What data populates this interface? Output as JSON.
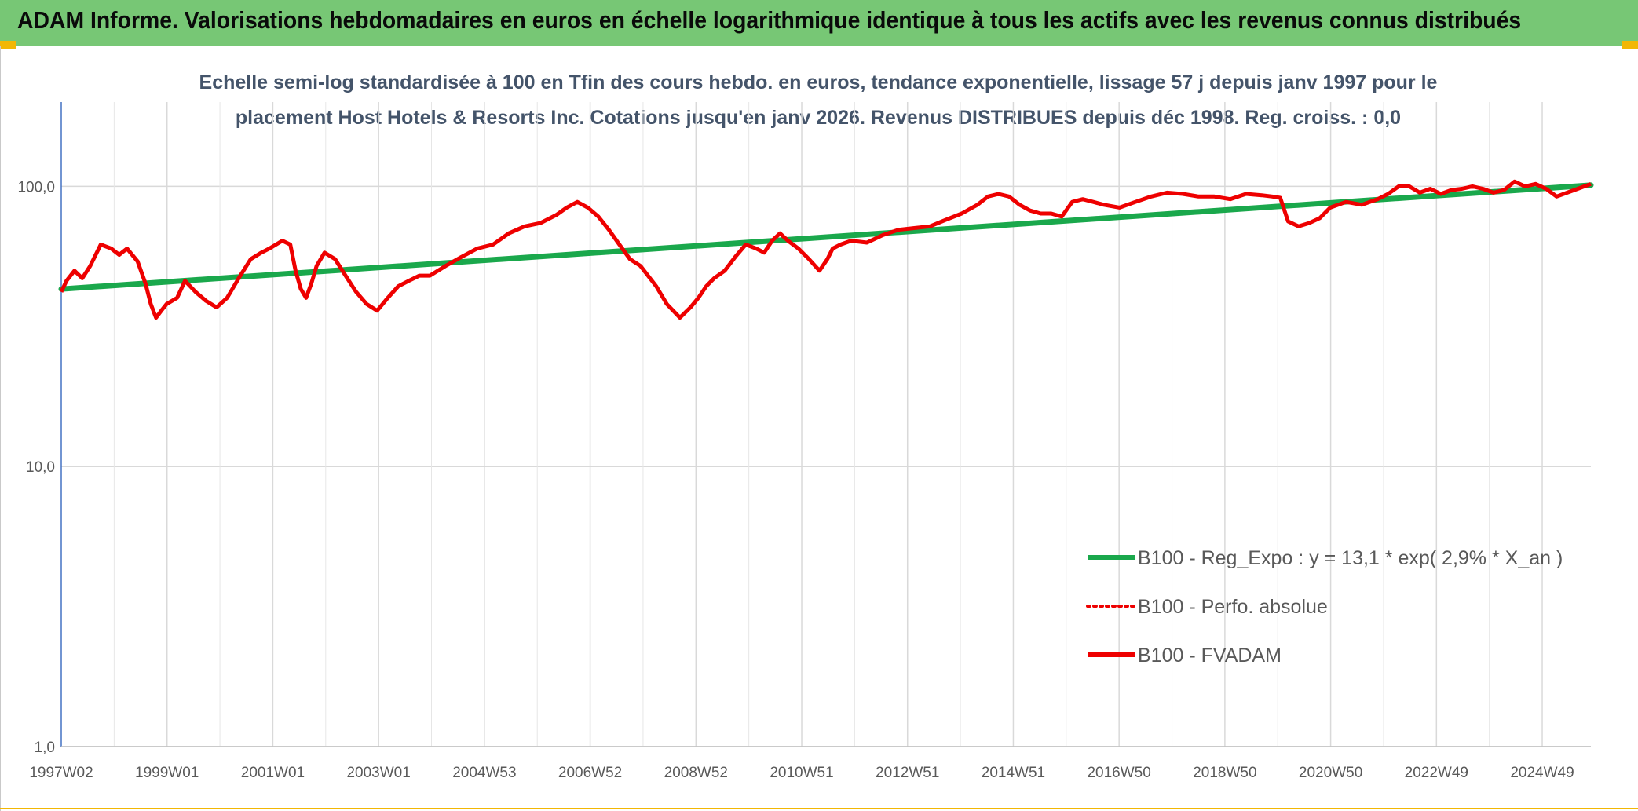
{
  "banner": {
    "title": "ADAM Informe. Valorisations hebdomadaires en euros en échelle logarithmique identique à tous les actifs avec les revenus connus distribués"
  },
  "chart_data": {
    "type": "line",
    "title_lines": [
      "Echelle semi-log standardisée à 100 en Tfin des cours hebdo. en euros, tendance exponentielle, lissage 57 j depuis janv 1997 pour le",
      "placement Host Hotels & Resorts Inc. Cotations jusqu'en janv 2026. Revenus DISTRIBUES depuis déc 1998. Reg. croiss. : 0,0"
    ],
    "y_scale": "log",
    "ylim": [
      1,
      200
    ],
    "y_ticks": [
      {
        "value": 1,
        "label": "1,0"
      },
      {
        "value": 10,
        "label": "10,0"
      },
      {
        "value": 100,
        "label": "100,0"
      }
    ],
    "x_ticks": [
      "1997W02",
      "1999W01",
      "2001W01",
      "2003W01",
      "2004W53",
      "2006W52",
      "2008W52",
      "2010W51",
      "2012W51",
      "2014W51",
      "2016W50",
      "2018W50",
      "2020W50",
      "2022W49",
      "2024W49"
    ],
    "x_range": [
      1997.0,
      2026.05
    ],
    "grid": true,
    "legend_position": "lower-right",
    "series": [
      {
        "name": "B100 - Reg_Expo : y = 13,1 * exp( 2,9% *  X_an )",
        "color": "#1aa84c",
        "style": "solid",
        "x": [
          1997.0,
          2026.05
        ],
        "values": [
          43,
          101
        ]
      },
      {
        "name": "B100 - Perfo. absolue",
        "color": "#ee0000",
        "style": "dotted",
        "x": [],
        "values": []
      },
      {
        "name": "B100 - FVADAM",
        "color": "#ee0000",
        "style": "solid",
        "x": [
          1997.0,
          1997.1,
          1997.25,
          1997.4,
          1997.55,
          1997.75,
          1997.95,
          1998.1,
          1998.25,
          1998.45,
          1998.6,
          1998.7,
          1998.8,
          1998.9,
          1999.0,
          1999.2,
          1999.35,
          1999.55,
          1999.75,
          1999.95,
          2000.15,
          2000.4,
          2000.6,
          2000.8,
          2000.95,
          2001.2,
          2001.35,
          2001.45,
          2001.55,
          2001.65,
          2001.75,
          2001.85,
          2002.0,
          2002.2,
          2002.4,
          2002.6,
          2002.8,
          2003.0,
          2003.2,
          2003.4,
          2003.6,
          2003.8,
          2004.0,
          2004.3,
          2004.6,
          2004.9,
          2005.2,
          2005.5,
          2005.8,
          2006.1,
          2006.4,
          2006.6,
          2006.8,
          2007.0,
          2007.2,
          2007.4,
          2007.6,
          2007.8,
          2008.0,
          2008.3,
          2008.5,
          2008.75,
          2008.95,
          2009.1,
          2009.25,
          2009.4,
          2009.6,
          2009.8,
          2010.0,
          2010.2,
          2010.35,
          2010.5,
          2010.65,
          2010.8,
          2011.0,
          2011.2,
          2011.4,
          2011.55,
          2011.65,
          2011.8,
          2012.0,
          2012.3,
          2012.6,
          2012.9,
          2013.2,
          2013.5,
          2013.8,
          2014.1,
          2014.4,
          2014.6,
          2014.8,
          2015.0,
          2015.2,
          2015.4,
          2015.6,
          2015.8,
          2016.0,
          2016.2,
          2016.4,
          2016.6,
          2016.8,
          2017.1,
          2017.4,
          2017.7,
          2018.0,
          2018.3,
          2018.6,
          2018.9,
          2019.2,
          2019.5,
          2019.8,
          2020.0,
          2020.15,
          2020.3,
          2020.5,
          2020.7,
          2020.9,
          2021.1,
          2021.4,
          2021.7,
          2022.0,
          2022.2,
          2022.4,
          2022.6,
          2022.8,
          2023.0,
          2023.2,
          2023.4,
          2023.6,
          2023.8,
          2024.0,
          2024.2,
          2024.4,
          2024.6,
          2024.8,
          2025.0,
          2025.2,
          2025.4,
          2025.6,
          2025.8,
          2026.05
        ],
        "values": [
          42,
          46,
          50,
          47,
          52,
          62,
          60,
          57,
          60,
          54,
          45,
          38,
          34,
          36,
          38,
          40,
          46,
          42,
          39,
          37,
          40,
          48,
          55,
          58,
          60,
          64,
          62,
          50,
          43,
          40,
          45,
          52,
          58,
          55,
          48,
          42,
          38,
          36,
          40,
          44,
          46,
          48,
          48,
          52,
          56,
          60,
          62,
          68,
          72,
          74,
          79,
          84,
          88,
          84,
          78,
          70,
          62,
          55,
          52,
          44,
          38,
          34,
          37,
          40,
          44,
          47,
          50,
          56,
          62,
          60,
          58,
          64,
          68,
          64,
          60,
          55,
          50,
          55,
          60,
          62,
          64,
          63,
          67,
          70,
          71,
          72,
          76,
          80,
          86,
          92,
          94,
          92,
          86,
          82,
          80,
          80,
          78,
          88,
          90,
          88,
          86,
          84,
          88,
          92,
          95,
          94,
          92,
          92,
          90,
          94,
          93,
          92,
          91,
          75,
          72,
          74,
          77,
          84,
          88,
          86,
          90,
          94,
          100,
          100,
          95,
          98,
          94,
          97,
          98,
          100,
          98,
          95,
          97,
          104,
          100,
          102,
          98,
          92,
          95,
          98,
          102
        ]
      }
    ]
  }
}
